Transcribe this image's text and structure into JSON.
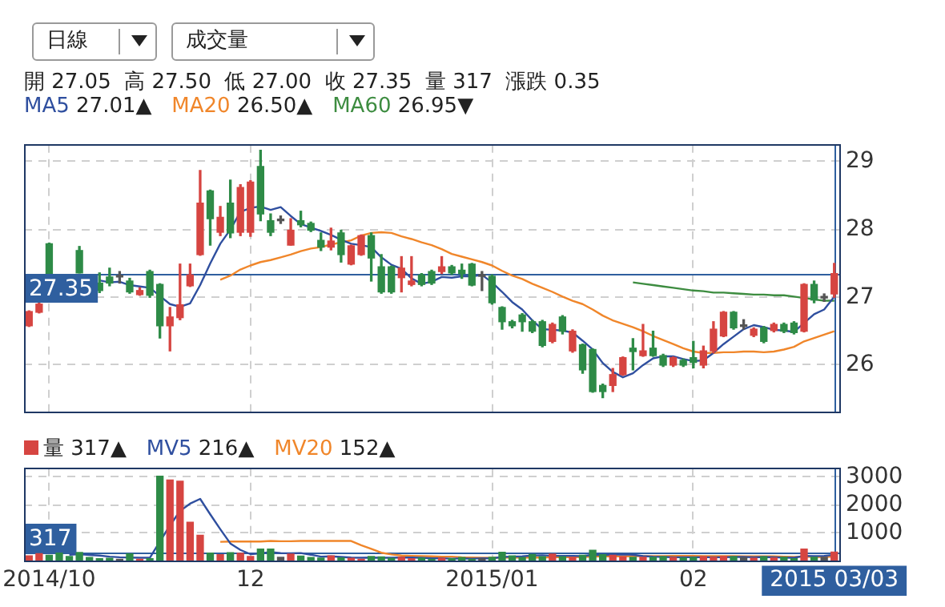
{
  "chart_data": [
    {
      "type": "candlestick",
      "subtitle": "開 27.05  高 27.50  低 27.00  收 27.35  量 317  漲跌 0.35",
      "annotations": [
        "日線",
        "成交量",
        "27.01▲",
        "26.50▲",
        "26.95▼"
      ],
      "categories": [
        null,
        null,
        "2014/10",
        null,
        null,
        null,
        null,
        null,
        null,
        null,
        null,
        null,
        null,
        null,
        null,
        null,
        null,
        null,
        null,
        null,
        null,
        null,
        "12",
        null,
        null,
        null,
        null,
        null,
        null,
        null,
        null,
        null,
        null,
        null,
        null,
        null,
        null,
        null,
        null,
        null,
        null,
        null,
        null,
        null,
        null,
        null,
        "2015/01",
        null,
        null,
        null,
        null,
        null,
        null,
        null,
        null,
        null,
        null,
        null,
        null,
        null,
        null,
        null,
        null,
        null,
        null,
        null,
        "02",
        null,
        null,
        null,
        null,
        null,
        null,
        null,
        null,
        null,
        null,
        null,
        null,
        null,
        "2015 03/03"
      ],
      "ohlc": [
        [
          26.58,
          26.8,
          26.57,
          26.79
        ],
        [
          26.78,
          26.92,
          26.77,
          26.9
        ],
        [
          27.79,
          27.8,
          27.35,
          27.35
        ],
        null,
        null,
        [
          27.69,
          27.75,
          27.36,
          27.36
        ],
        null,
        [
          27.21,
          27.36,
          27.07,
          27.1
        ],
        [
          27.3,
          27.43,
          27.17,
          27.21
        ],
        [
          27.3,
          27.38,
          27.21,
          27.3
        ],
        [
          27.24,
          27.28,
          27.06,
          27.08
        ],
        [
          27.04,
          27.14,
          27.03,
          27.1
        ],
        [
          27.38,
          27.4,
          27.0,
          27.03
        ],
        [
          27.19,
          27.2,
          26.4,
          26.58
        ],
        [
          26.58,
          26.85,
          26.21,
          26.71
        ],
        [
          26.7,
          27.49,
          26.67,
          26.89
        ],
        [
          27.17,
          27.49,
          27.16,
          27.33
        ],
        [
          27.63,
          28.87,
          27.62,
          28.39
        ],
        [
          28.57,
          28.58,
          27.77,
          28.16
        ],
        [
          27.96,
          28.34,
          27.91,
          28.18
        ],
        [
          28.39,
          28.73,
          27.88,
          27.95
        ],
        [
          27.96,
          28.66,
          27.91,
          28.62
        ],
        [
          27.96,
          28.72,
          27.9,
          28.7
        ],
        [
          28.93,
          29.17,
          28.13,
          28.23
        ],
        [
          28.13,
          28.23,
          27.91,
          27.96
        ],
        [
          28.13,
          28.2,
          28.09,
          28.13
        ],
        [
          27.77,
          28.16,
          27.77,
          27.99
        ],
        [
          28.13,
          28.27,
          28.04,
          28.07
        ],
        [
          28.09,
          28.11,
          27.97,
          27.99
        ],
        [
          27.84,
          27.95,
          27.69,
          27.74
        ],
        [
          27.74,
          28.02,
          27.7,
          27.83
        ],
        [
          27.95,
          27.99,
          27.52,
          27.63
        ],
        [
          27.49,
          27.77,
          27.48,
          27.76
        ],
        [
          27.63,
          27.92,
          27.62,
          27.91
        ],
        [
          27.91,
          27.95,
          27.24,
          27.58
        ],
        [
          27.45,
          27.63,
          27.06,
          27.08
        ],
        [
          27.45,
          27.46,
          27.06,
          27.08
        ],
        [
          27.29,
          27.6,
          27.08,
          27.43
        ],
        [
          27.19,
          27.6,
          27.17,
          27.24
        ],
        [
          27.33,
          27.35,
          27.17,
          27.19
        ],
        [
          27.38,
          27.4,
          27.19,
          27.21
        ],
        [
          27.38,
          27.6,
          27.35,
          27.45
        ],
        [
          27.45,
          27.47,
          27.34,
          27.36
        ],
        [
          27.4,
          27.49,
          27.28,
          27.35
        ],
        [
          27.49,
          27.5,
          27.17,
          27.18
        ],
        [
          27.31,
          27.38,
          27.1,
          27.31
        ],
        [
          27.31,
          27.33,
          26.9,
          26.92
        ],
        [
          26.85,
          26.86,
          26.53,
          26.64
        ],
        [
          26.64,
          26.66,
          26.55,
          26.58
        ],
        [
          26.74,
          26.76,
          26.5,
          26.64
        ],
        [
          26.64,
          26.66,
          26.48,
          26.5
        ],
        [
          26.64,
          26.66,
          26.27,
          26.29
        ],
        [
          26.35,
          26.62,
          26.33,
          26.6
        ],
        [
          26.71,
          26.73,
          26.46,
          26.5
        ],
        [
          26.21,
          26.52,
          26.19,
          26.5
        ],
        [
          26.3,
          26.31,
          25.88,
          25.93
        ],
        [
          26.23,
          26.24,
          25.6,
          25.61
        ],
        [
          25.7,
          25.72,
          25.52,
          25.61
        ],
        [
          25.7,
          25.95,
          25.61,
          25.86
        ],
        [
          25.86,
          26.12,
          25.85,
          26.11
        ],
        [
          26.25,
          26.39,
          25.93,
          26.2
        ],
        [
          26.14,
          26.6,
          26.13,
          26.21
        ],
        [
          26.25,
          26.5,
          26.13,
          26.14
        ],
        [
          26.14,
          26.16,
          25.98,
          26.0
        ],
        [
          26.0,
          26.12,
          25.98,
          26.11
        ],
        [
          26.07,
          26.09,
          25.98,
          26.0
        ],
        [
          26.11,
          26.35,
          25.96,
          26.04
        ],
        [
          26.0,
          26.28,
          25.96,
          26.21
        ],
        [
          26.21,
          26.64,
          26.18,
          26.53
        ],
        [
          26.43,
          26.79,
          26.42,
          26.78
        ],
        [
          26.78,
          26.79,
          26.53,
          26.55
        ],
        [
          26.57,
          26.67,
          26.53,
          26.57
        ],
        [
          26.44,
          26.55,
          26.42,
          26.53
        ],
        [
          26.55,
          26.57,
          26.33,
          26.35
        ],
        [
          26.51,
          26.62,
          26.49,
          26.6
        ],
        [
          26.6,
          26.62,
          26.48,
          26.5
        ],
        [
          26.62,
          26.64,
          26.46,
          26.48
        ],
        [
          26.5,
          27.2,
          26.49,
          27.19
        ],
        [
          27.19,
          27.24,
          26.92,
          26.96
        ],
        [
          26.99,
          27.05,
          26.94,
          26.99
        ],
        [
          27.05,
          27.5,
          27.0,
          27.35
        ]
      ],
      "colors": [
        "#d64541",
        "#d64541",
        "#2e8b47",
        "#2e8b47",
        "#2e8b47",
        "#2e8b47",
        "#2e8b47",
        "#2e8b47",
        "#2e8b47",
        "#555555",
        "#2e8b47",
        "#d64541",
        "#2e8b47",
        "#2e8b47",
        "#d64541",
        "#d64541",
        "#d64541",
        "#d64541",
        "#2e8b47",
        "#d64541",
        "#2e8b47",
        "#d64541",
        "#d64541",
        "#2e8b47",
        "#2e8b47",
        "#555555",
        "#d64541",
        "#2e8b47",
        "#2e8b47",
        "#2e8b47",
        "#d64541",
        "#2e8b47",
        "#d64541",
        "#d64541",
        "#2e8b47",
        "#2e8b47",
        "#2e8b47",
        "#d64541",
        "#d64541",
        "#2e8b47",
        "#2e8b47",
        "#d64541",
        "#2e8b47",
        "#2e8b47",
        "#2e8b47",
        "#555555",
        "#2e8b47",
        "#2e8b47",
        "#2e8b47",
        "#2e8b47",
        "#2e8b47",
        "#2e8b47",
        "#d64541",
        "#2e8b47",
        "#d64541",
        "#2e8b47",
        "#2e8b47",
        "#2e8b47",
        "#d64541",
        "#d64541",
        "#2e8b47",
        "#d64541",
        "#2e8b47",
        "#2e8b47",
        "#d64541",
        "#2e8b47",
        "#2e8b47",
        "#d64541",
        "#d64541",
        "#d64541",
        "#2e8b47",
        "#555555",
        "#d64541",
        "#2e8b47",
        "#d64541",
        "#2e8b47",
        "#2e8b47",
        "#d64541",
        "#2e8b47",
        "#555555",
        "#d64541"
      ],
      "series": [
        {
          "name": "MA5",
          "type": "line",
          "color": "#2f4f9f",
          "values": [
            null,
            null,
            null,
            null,
            null,
            null,
            null,
            27.25,
            27.22,
            27.23,
            27.18,
            27.16,
            27.14,
            27.02,
            26.9,
            26.86,
            26.91,
            27.18,
            27.5,
            27.79,
            28.0,
            28.26,
            28.32,
            28.34,
            28.29,
            28.33,
            28.2,
            28.08,
            28.03,
            27.98,
            27.92,
            27.85,
            27.79,
            27.77,
            27.74,
            27.59,
            27.48,
            27.42,
            27.28,
            27.2,
            27.23,
            27.3,
            27.29,
            27.31,
            27.31,
            27.33,
            27.22,
            27.08,
            26.93,
            26.82,
            26.66,
            26.53,
            26.52,
            26.51,
            26.48,
            26.36,
            26.23,
            26.03,
            25.9,
            25.82,
            25.88,
            26.0,
            26.1,
            26.13,
            26.13,
            26.09,
            26.06,
            26.07,
            26.18,
            26.31,
            26.42,
            26.53,
            26.59,
            26.56,
            26.52,
            26.51,
            26.49,
            26.62,
            26.75,
            26.82,
            27.01
          ]
        },
        {
          "name": "MA20",
          "type": "line",
          "color": "#f0862a",
          "values": [
            null,
            null,
            null,
            null,
            null,
            null,
            null,
            null,
            null,
            null,
            null,
            null,
            null,
            null,
            null,
            null,
            null,
            null,
            null,
            27.26,
            27.32,
            27.41,
            27.47,
            27.52,
            27.55,
            27.59,
            27.63,
            27.68,
            27.72,
            27.74,
            27.78,
            27.81,
            27.84,
            27.91,
            27.95,
            27.96,
            27.95,
            27.9,
            27.86,
            27.81,
            27.77,
            27.71,
            27.64,
            27.6,
            27.56,
            27.52,
            27.47,
            27.39,
            27.32,
            27.27,
            27.2,
            27.14,
            27.08,
            27.01,
            26.95,
            26.9,
            26.82,
            26.73,
            26.66,
            26.61,
            26.56,
            26.5,
            26.43,
            26.37,
            26.31,
            26.25,
            26.2,
            26.18,
            26.18,
            26.19,
            26.19,
            26.2,
            26.2,
            26.19,
            26.2,
            26.23,
            26.27,
            26.35,
            26.4,
            26.45,
            26.5
          ]
        },
        {
          "name": "MA60",
          "type": "line",
          "color": "#3d8c40",
          "values": [
            null,
            null,
            null,
            null,
            null,
            null,
            null,
            null,
            null,
            null,
            null,
            null,
            null,
            null,
            null,
            null,
            null,
            null,
            null,
            null,
            null,
            null,
            null,
            null,
            null,
            null,
            null,
            null,
            null,
            null,
            null,
            null,
            null,
            null,
            null,
            null,
            null,
            null,
            null,
            null,
            null,
            null,
            null,
            null,
            null,
            null,
            null,
            null,
            null,
            null,
            null,
            null,
            null,
            null,
            null,
            null,
            null,
            null,
            null,
            null,
            27.22,
            27.2,
            27.18,
            27.16,
            27.14,
            27.12,
            27.1,
            27.09,
            27.07,
            27.07,
            27.06,
            27.05,
            27.04,
            27.04,
            27.03,
            27.03,
            27.01,
            26.99,
            26.97,
            26.95,
            26.95
          ]
        }
      ],
      "ylim": [
        25.3,
        29.25
      ],
      "yticks": [
        26,
        27,
        28,
        29
      ],
      "grid": true,
      "tick_labels": "y",
      "legend": "top left",
      "ref_lines": [
        {
          "axis": "y",
          "value": 27.35,
          "label": "27.35"
        },
        {
          "axis": "x",
          "value": "2015 03/03"
        }
      ]
    },
    {
      "type": "bar",
      "annotations": [
        "317▲",
        "216▲",
        "152▲"
      ],
      "categories": [
        null,
        null,
        "2014/10",
        null,
        null,
        null,
        null,
        null,
        null,
        null,
        null,
        null,
        null,
        null,
        null,
        null,
        null,
        null,
        null,
        null,
        null,
        null,
        "12",
        null,
        null,
        null,
        null,
        null,
        null,
        null,
        null,
        null,
        null,
        null,
        null,
        null,
        null,
        null,
        null,
        null,
        null,
        null,
        null,
        null,
        null,
        null,
        "2015/01",
        null,
        null,
        null,
        null,
        null,
        null,
        null,
        null,
        null,
        null,
        null,
        null,
        null,
        null,
        null,
        null,
        null,
        null,
        null,
        "02",
        null,
        null,
        null,
        null,
        null,
        null,
        null,
        null,
        null,
        null,
        null,
        null,
        null,
        "2015 03/03"
      ],
      "series": [
        {
          "name": "量",
          "values": [
            180,
            260,
            200,
            280,
            160,
            300,
            120,
            80,
            90,
            60,
            250,
            60,
            80,
            3020,
            2880,
            2840,
            1380,
            910,
            280,
            220,
            290,
            270,
            160,
            420,
            420,
            130,
            240,
            170,
            120,
            100,
            180,
            110,
            90,
            60,
            160,
            140,
            90,
            130,
            80,
            100,
            60,
            90,
            80,
            120,
            60,
            80,
            130,
            310,
            180,
            120,
            230,
            150,
            240,
            150,
            120,
            200,
            380,
            220,
            200,
            150,
            130,
            130,
            130,
            150,
            120,
            110,
            120,
            150,
            130,
            160,
            150,
            120,
            100,
            150,
            110,
            130,
            80,
            420,
            130,
            130,
            317
          ],
          "colors": [
            "#d64541",
            "#d64541",
            "#2e8b47",
            "#2e8b47",
            "#2e8b47",
            "#2e8b47",
            "#2e8b47",
            "#2e8b47",
            "#2e8b47",
            "#555555",
            "#2e8b47",
            "#d64541",
            "#2e8b47",
            "#2e8b47",
            "#d64541",
            "#d64541",
            "#d64541",
            "#d64541",
            "#2e8b47",
            "#d64541",
            "#2e8b47",
            "#d64541",
            "#d64541",
            "#2e8b47",
            "#2e8b47",
            "#555555",
            "#d64541",
            "#2e8b47",
            "#2e8b47",
            "#2e8b47",
            "#d64541",
            "#2e8b47",
            "#d64541",
            "#d64541",
            "#2e8b47",
            "#2e8b47",
            "#2e8b47",
            "#d64541",
            "#d64541",
            "#2e8b47",
            "#2e8b47",
            "#d64541",
            "#2e8b47",
            "#2e8b47",
            "#2e8b47",
            "#555555",
            "#2e8b47",
            "#2e8b47",
            "#2e8b47",
            "#2e8b47",
            "#2e8b47",
            "#2e8b47",
            "#d64541",
            "#2e8b47",
            "#d64541",
            "#2e8b47",
            "#2e8b47",
            "#2e8b47",
            "#d64541",
            "#d64541",
            "#2e8b47",
            "#d64541",
            "#2e8b47",
            "#2e8b47",
            "#d64541",
            "#2e8b47",
            "#2e8b47",
            "#d64541",
            "#d64541",
            "#d64541",
            "#2e8b47",
            "#555555",
            "#d64541",
            "#2e8b47",
            "#d64541",
            "#2e8b47",
            "#2e8b47",
            "#d64541",
            "#2e8b47",
            "#555555",
            "#d64541"
          ]
        },
        {
          "name": "MV5",
          "type": "line",
          "color": "#2f4f9f",
          "values": [
            null,
            null,
            null,
            null,
            220,
            240,
            210,
            190,
            150,
            130,
            120,
            110,
            110,
            690,
            1260,
            1780,
            2040,
            2210,
            1660,
            1130,
            620,
            390,
            240,
            270,
            310,
            280,
            270,
            280,
            220,
            150,
            160,
            140,
            120,
            110,
            120,
            110,
            110,
            120,
            120,
            110,
            90,
            90,
            80,
            90,
            80,
            90,
            90,
            140,
            150,
            160,
            190,
            200,
            180,
            180,
            180,
            170,
            220,
            210,
            220,
            230,
            220,
            170,
            150,
            140,
            130,
            130,
            130,
            130,
            130,
            130,
            140,
            140,
            130,
            140,
            130,
            120,
            110,
            180,
            170,
            180,
            216
          ]
        },
        {
          "name": "MV20",
          "type": "line",
          "color": "#f0862a",
          "values": [
            null,
            null,
            null,
            null,
            null,
            null,
            null,
            null,
            null,
            null,
            null,
            null,
            null,
            null,
            null,
            null,
            null,
            null,
            null,
            680,
            690,
            690,
            690,
            690,
            710,
            700,
            700,
            710,
            710,
            710,
            710,
            710,
            710,
            560,
            430,
            290,
            230,
            190,
            180,
            170,
            160,
            150,
            150,
            130,
            120,
            110,
            110,
            120,
            120,
            120,
            120,
            120,
            130,
            140,
            130,
            140,
            150,
            160,
            160,
            160,
            170,
            170,
            170,
            170,
            180,
            180,
            180,
            170,
            170,
            170,
            170,
            160,
            160,
            160,
            160,
            150,
            140,
            150,
            140,
            140,
            152
          ]
        }
      ],
      "ylim": [
        0,
        3300
      ],
      "yticks": [
        1000,
        2000,
        3000
      ],
      "grid": true,
      "legend": "top left",
      "ref_lines": [
        {
          "axis": "y",
          "value": 317,
          "label": "317"
        },
        {
          "axis": "x",
          "value": "2015 03/03"
        }
      ]
    }
  ]
}
